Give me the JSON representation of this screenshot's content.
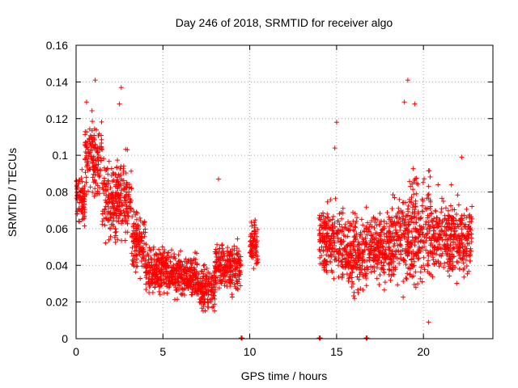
{
  "chart_data": {
    "type": "scatter",
    "title": "Day 246 of 2018, SRMTID for receiver algo",
    "xlabel": "GPS time / hours",
    "ylabel": "SRMTID / TECUs",
    "xlim": [
      0,
      24
    ],
    "ylim": [
      0,
      0.16
    ],
    "x_ticks": [
      0,
      5,
      10,
      15,
      20
    ],
    "x_tick_labels": [
      "0",
      "5",
      "10",
      "15",
      "20"
    ],
    "y_ticks": [
      0,
      0.02,
      0.04,
      0.06,
      0.08,
      0.1,
      0.12,
      0.14,
      0.16
    ],
    "y_tick_labels": [
      "0",
      "0.02",
      "0.04",
      "0.06",
      "0.08",
      "0.1",
      "0.12",
      "0.14",
      "0.16"
    ],
    "grid": true,
    "marker": "+",
    "color": "#ff0000",
    "series": [
      {
        "name": "SRMTID",
        "segments": [
          {
            "start": 0.0,
            "end": 0.5,
            "low": 0.055,
            "high": 0.095
          },
          {
            "start": 0.5,
            "end": 1.5,
            "low": 0.07,
            "high": 0.128
          },
          {
            "start": 1.5,
            "end": 2.3,
            "low": 0.045,
            "high": 0.105
          },
          {
            "start": 2.3,
            "end": 3.2,
            "low": 0.045,
            "high": 0.11
          },
          {
            "start": 3.2,
            "end": 4.0,
            "low": 0.03,
            "high": 0.075
          },
          {
            "start": 4.0,
            "end": 5.5,
            "low": 0.02,
            "high": 0.055
          },
          {
            "start": 5.5,
            "end": 7.0,
            "low": 0.018,
            "high": 0.05
          },
          {
            "start": 7.0,
            "end": 8.0,
            "low": 0.01,
            "high": 0.045
          },
          {
            "start": 8.0,
            "end": 9.5,
            "low": 0.02,
            "high": 0.058
          },
          {
            "start": 9.5,
            "end": 10.0,
            "low": 0.0,
            "high": 0.0
          },
          {
            "start": 10.0,
            "end": 10.5,
            "low": 0.035,
            "high": 0.07
          },
          {
            "start": 14.0,
            "end": 15.3,
            "low": 0.025,
            "high": 0.08
          },
          {
            "start": 15.3,
            "end": 16.7,
            "low": 0.018,
            "high": 0.075
          },
          {
            "start": 16.7,
            "end": 18.2,
            "low": 0.025,
            "high": 0.075
          },
          {
            "start": 18.2,
            "end": 19.3,
            "low": 0.02,
            "high": 0.09
          },
          {
            "start": 19.3,
            "end": 20.5,
            "low": 0.015,
            "high": 0.1
          },
          {
            "start": 20.5,
            "end": 22.8,
            "low": 0.025,
            "high": 0.085
          }
        ],
        "outliers": [
          {
            "x": 1.1,
            "y": 0.141
          },
          {
            "x": 0.6,
            "y": 0.129
          },
          {
            "x": 2.6,
            "y": 0.137
          },
          {
            "x": 2.5,
            "y": 0.128
          },
          {
            "x": 15.0,
            "y": 0.118
          },
          {
            "x": 14.9,
            "y": 0.104
          },
          {
            "x": 19.1,
            "y": 0.141
          },
          {
            "x": 18.9,
            "y": 0.129
          },
          {
            "x": 19.5,
            "y": 0.128
          },
          {
            "x": 8.2,
            "y": 0.087
          },
          {
            "x": 20.3,
            "y": 0.009
          },
          {
            "x": 22.2,
            "y": 0.099
          }
        ],
        "zero_points": [
          9.5,
          14.0,
          16.7
        ]
      }
    ]
  }
}
